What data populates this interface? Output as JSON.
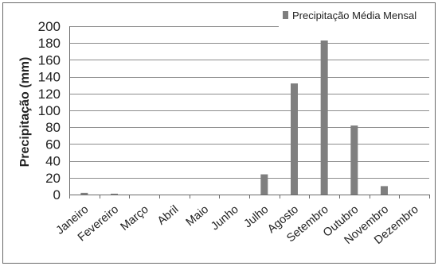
{
  "chart_data": {
    "type": "bar",
    "categories": [
      "Janeiro",
      "Fevereiro",
      "Março",
      "Abril",
      "Maio",
      "Junho",
      "Julho",
      "Agosto",
      "Setembro",
      "Outubro",
      "Novembro",
      "Dezembro"
    ],
    "series": [
      {
        "name": "Precipitação Média Mensal",
        "values": [
          2,
          1,
          0,
          0,
          0,
          0,
          24,
          132,
          183,
          82,
          10,
          0
        ],
        "color": "#7f7f7f"
      }
    ],
    "ylabel": "Precipitação (mm)",
    "ylim": [
      0,
      200
    ],
    "yticks": [
      0,
      20,
      40,
      60,
      80,
      100,
      120,
      140,
      160,
      180,
      200
    ],
    "grid": true,
    "legend_position": "top-right"
  }
}
